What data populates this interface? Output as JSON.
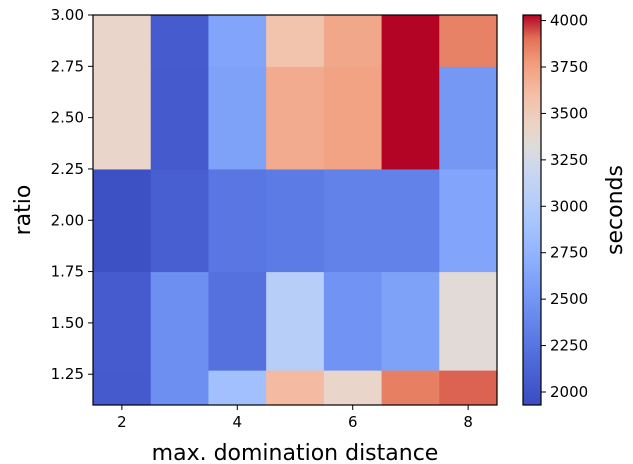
{
  "chart_data": {
    "type": "heatmap",
    "xlabel": "max. domination distance",
    "ylabel": "ratio",
    "colorbar_label": "seconds",
    "x_columns": [
      2,
      3,
      4,
      5,
      6,
      7,
      8
    ],
    "y_row_edges": [
      1.1,
      1.27,
      1.75,
      2.25,
      2.75,
      3.0
    ],
    "x_ticks": [
      "2",
      "4",
      "6",
      "8"
    ],
    "y_ticks": [
      "1.25",
      "1.50",
      "1.75",
      "2.00",
      "2.25",
      "2.50",
      "2.75",
      "3.00"
    ],
    "colorbar_ticks": [
      "2000",
      "2250",
      "2500",
      "2750",
      "3000",
      "3250",
      "3500",
      "3750",
      "4000"
    ],
    "vmin": 1930,
    "vmax": 4030,
    "colormap": "coolwarm",
    "values": [
      [
        2050,
        2450,
        2860,
        3620,
        3420,
        3860,
        3920
      ],
      [
        2060,
        2450,
        2220,
        3030,
        2480,
        2600,
        3350
      ],
      [
        1970,
        2080,
        2260,
        2300,
        2350,
        2350,
        2620
      ],
      [
        3420,
        2050,
        2600,
        3700,
        3740,
        4030,
        2520
      ],
      [
        3420,
        2060,
        2620,
        3560,
        3720,
        4030,
        3850
      ]
    ]
  }
}
